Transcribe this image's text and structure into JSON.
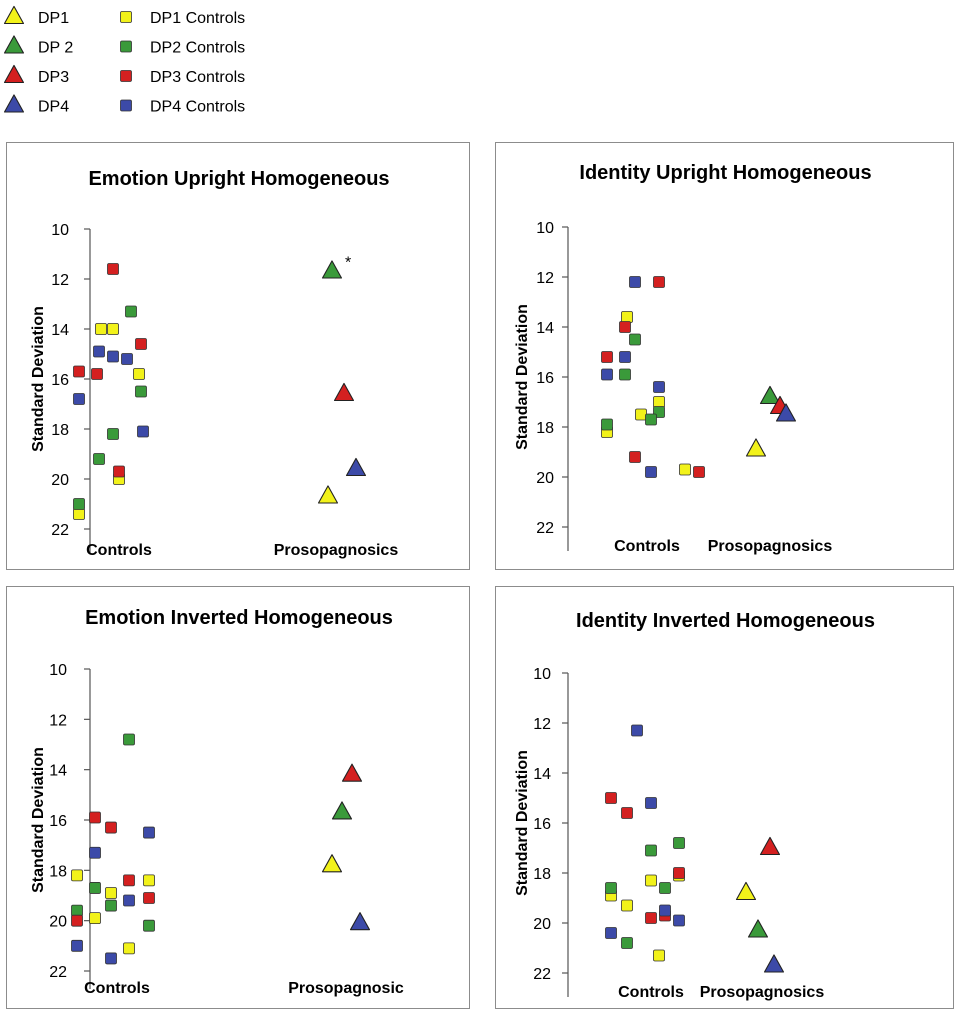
{
  "legend": {
    "items": [
      {
        "label": "DP1",
        "shape": "triangle",
        "color": "#f2f21a"
      },
      {
        "label": "DP 2",
        "shape": "triangle",
        "color": "#3a9a3a"
      },
      {
        "label": "DP3",
        "shape": "triangle",
        "color": "#d42020"
      },
      {
        "label": "DP4",
        "shape": "triangle",
        "color": "#3c4aa8"
      },
      {
        "label": "DP1 Controls",
        "shape": "square",
        "color": "#f2f21a"
      },
      {
        "label": "DP2 Controls",
        "shape": "square",
        "color": "#3a9a3a"
      },
      {
        "label": "DP3 Controls",
        "shape": "square",
        "color": "#d42020"
      },
      {
        "label": "DP4 Controls",
        "shape": "square",
        "color": "#3c4aa8"
      }
    ]
  },
  "chart_data": [
    {
      "type": "scatter",
      "title": "Emotion Upright Homogeneous",
      "ylabel": "Standard Deviation",
      "ylim": [
        10,
        22
      ],
      "y_inverted": true,
      "y_ticks": [
        "10",
        "12",
        "14",
        "16",
        "18",
        "20",
        "22"
      ],
      "categories": [
        "Controls",
        "Prosopagnosics"
      ],
      "annotation": "*",
      "annotation_point": "DP 2",
      "series": [
        {
          "name": "DP1 Controls",
          "marker": "square",
          "color": "#f2f21a",
          "points": [
            [
              -0.45,
              14.0
            ],
            [
              -0.15,
              14.0
            ],
            [
              0.5,
              15.8
            ],
            [
              0.0,
              20.0
            ],
            [
              -1.0,
              21.4
            ]
          ]
        },
        {
          "name": "DP2 Controls",
          "marker": "square",
          "color": "#3a9a3a",
          "points": [
            [
              0.3,
              13.3
            ],
            [
              0.55,
              16.5
            ],
            [
              -0.15,
              18.2
            ],
            [
              -0.5,
              19.2
            ],
            [
              -1.0,
              21.0
            ]
          ]
        },
        {
          "name": "DP3 Controls",
          "marker": "square",
          "color": "#d42020",
          "points": [
            [
              -0.15,
              11.6
            ],
            [
              0.55,
              14.6
            ],
            [
              -1.0,
              15.7
            ],
            [
              -0.55,
              15.8
            ],
            [
              0.0,
              19.7
            ]
          ]
        },
        {
          "name": "DP4 Controls",
          "marker": "square",
          "color": "#3c4aa8",
          "points": [
            [
              -0.5,
              14.9
            ],
            [
              -0.15,
              15.1
            ],
            [
              0.2,
              15.2
            ],
            [
              -1.0,
              16.8
            ],
            [
              0.6,
              18.1
            ]
          ]
        },
        {
          "name": "DP1",
          "marker": "triangle",
          "color": "#f2f21a",
          "points": [
            [
              -0.2,
              20.7
            ]
          ]
        },
        {
          "name": "DP 2",
          "marker": "triangle",
          "color": "#3a9a3a",
          "points": [
            [
              -0.1,
              11.7
            ]
          ]
        },
        {
          "name": "DP3",
          "marker": "triangle",
          "color": "#d42020",
          "points": [
            [
              0.2,
              16.6
            ]
          ]
        },
        {
          "name": "DP4",
          "marker": "triangle",
          "color": "#3c4aa8",
          "points": [
            [
              0.5,
              19.6
            ]
          ]
        }
      ]
    },
    {
      "type": "scatter",
      "title": "Identity Upright Homogeneous",
      "ylabel": "Standard Deviation",
      "ylim": [
        10,
        22
      ],
      "y_inverted": true,
      "y_ticks": [
        "10",
        "12",
        "14",
        "16",
        "18",
        "20",
        "22"
      ],
      "categories": [
        "Controls",
        "Prosopagnosics"
      ],
      "series": [
        {
          "name": "DP1 Controls",
          "marker": "square",
          "color": "#f2f21a",
          "points": [
            [
              -0.5,
              13.6
            ],
            [
              0.3,
              17.0
            ],
            [
              -0.15,
              17.5
            ],
            [
              -1.0,
              18.2
            ],
            [
              0.95,
              19.7
            ]
          ]
        },
        {
          "name": "DP2 Controls",
          "marker": "square",
          "color": "#3a9a3a",
          "points": [
            [
              -0.3,
              14.5
            ],
            [
              -0.55,
              15.9
            ],
            [
              0.3,
              17.4
            ],
            [
              0.1,
              17.7
            ],
            [
              -1.0,
              17.9
            ]
          ]
        },
        {
          "name": "DP3 Controls",
          "marker": "square",
          "color": "#d42020",
          "points": [
            [
              0.3,
              12.2
            ],
            [
              -0.55,
              14.0
            ],
            [
              -1.0,
              15.2
            ],
            [
              -0.3,
              19.2
            ],
            [
              1.3,
              19.8
            ]
          ]
        },
        {
          "name": "DP4 Controls",
          "marker": "square",
          "color": "#3c4aa8",
          "points": [
            [
              -0.3,
              12.2
            ],
            [
              -0.55,
              15.2
            ],
            [
              -1.0,
              15.9
            ],
            [
              0.3,
              16.4
            ],
            [
              0.1,
              19.8
            ]
          ]
        },
        {
          "name": "DP1",
          "marker": "triangle",
          "color": "#f2f21a",
          "points": [
            [
              -0.35,
              18.9
            ]
          ]
        },
        {
          "name": "DP 2",
          "marker": "triangle",
          "color": "#3a9a3a",
          "points": [
            [
              0.0,
              16.8
            ]
          ]
        },
        {
          "name": "DP3",
          "marker": "triangle",
          "color": "#d42020",
          "points": [
            [
              0.25,
              17.2
            ]
          ]
        },
        {
          "name": "DP4",
          "marker": "triangle",
          "color": "#3c4aa8",
          "points": [
            [
              0.4,
              17.5
            ]
          ]
        }
      ]
    },
    {
      "type": "scatter",
      "title": "Emotion Inverted Homogeneous",
      "ylabel": "Standard Deviation",
      "ylim": [
        10,
        22
      ],
      "y_inverted": true,
      "y_ticks": [
        "10",
        "12",
        "14",
        "16",
        "18",
        "20",
        "22"
      ],
      "categories": [
        "Controls",
        "Prosopagnosic"
      ],
      "series": [
        {
          "name": "DP1 Controls",
          "marker": "square",
          "color": "#f2f21a",
          "points": [
            [
              -1.0,
              18.2
            ],
            [
              0.8,
              18.4
            ],
            [
              -0.15,
              18.9
            ],
            [
              -0.55,
              19.9
            ],
            [
              0.3,
              21.1
            ]
          ]
        },
        {
          "name": "DP2 Controls",
          "marker": "square",
          "color": "#3a9a3a",
          "points": [
            [
              0.3,
              12.8
            ],
            [
              -0.55,
              18.7
            ],
            [
              -0.15,
              19.4
            ],
            [
              -1.0,
              19.6
            ],
            [
              0.8,
              20.2
            ]
          ]
        },
        {
          "name": "DP3 Controls",
          "marker": "square",
          "color": "#d42020",
          "points": [
            [
              -0.55,
              15.9
            ],
            [
              -0.15,
              16.3
            ],
            [
              0.3,
              18.4
            ],
            [
              0.8,
              19.1
            ],
            [
              -1.0,
              20.0
            ]
          ]
        },
        {
          "name": "DP4 Controls",
          "marker": "square",
          "color": "#3c4aa8",
          "points": [
            [
              0.8,
              16.5
            ],
            [
              -0.55,
              17.3
            ],
            [
              0.3,
              19.2
            ],
            [
              -1.0,
              21.0
            ],
            [
              -0.15,
              21.5
            ]
          ]
        },
        {
          "name": "DP1",
          "marker": "triangle",
          "color": "#f2f21a",
          "points": [
            [
              -0.35,
              17.8
            ]
          ]
        },
        {
          "name": "DP 2",
          "marker": "triangle",
          "color": "#3a9a3a",
          "points": [
            [
              -0.1,
              15.7
            ]
          ]
        },
        {
          "name": "DP3",
          "marker": "triangle",
          "color": "#d42020",
          "points": [
            [
              0.15,
              14.2
            ]
          ]
        },
        {
          "name": "DP4",
          "marker": "triangle",
          "color": "#3c4aa8",
          "points": [
            [
              0.35,
              20.1
            ]
          ]
        }
      ]
    },
    {
      "type": "scatter",
      "title": "Identity Inverted Homogeneous",
      "ylabel": "Standard Deviation",
      "ylim": [
        10,
        22
      ],
      "y_inverted": true,
      "y_ticks": [
        "10",
        "12",
        "14",
        "16",
        "18",
        "20",
        "22"
      ],
      "categories": [
        "Controls",
        "Prosopagnosics"
      ],
      "series": [
        {
          "name": "DP1 Controls",
          "marker": "square",
          "color": "#f2f21a",
          "points": [
            [
              0.0,
              18.3
            ],
            [
              0.7,
              18.1
            ],
            [
              -1.0,
              18.9
            ],
            [
              -0.6,
              19.3
            ],
            [
              0.2,
              21.3
            ]
          ]
        },
        {
          "name": "DP2 Controls",
          "marker": "square",
          "color": "#3a9a3a",
          "points": [
            [
              0.7,
              16.8
            ],
            [
              0.0,
              17.1
            ],
            [
              0.35,
              18.6
            ],
            [
              -1.0,
              18.6
            ],
            [
              -0.6,
              20.8
            ]
          ]
        },
        {
          "name": "DP3 Controls",
          "marker": "square",
          "color": "#d42020",
          "points": [
            [
              -1.0,
              15.0
            ],
            [
              -0.6,
              15.6
            ],
            [
              0.7,
              18.0
            ],
            [
              0.35,
              19.7
            ],
            [
              0.0,
              19.8
            ]
          ]
        },
        {
          "name": "DP4 Controls",
          "marker": "square",
          "color": "#3c4aa8",
          "points": [
            [
              -0.35,
              12.3
            ],
            [
              0.0,
              15.2
            ],
            [
              0.35,
              19.5
            ],
            [
              0.7,
              19.9
            ],
            [
              -1.0,
              20.4
            ]
          ]
        },
        {
          "name": "DP1",
          "marker": "triangle",
          "color": "#f2f21a",
          "points": [
            [
              -0.4,
              18.8
            ]
          ]
        },
        {
          "name": "DP 2",
          "marker": "triangle",
          "color": "#3a9a3a",
          "points": [
            [
              -0.1,
              20.3
            ]
          ]
        },
        {
          "name": "DP3",
          "marker": "triangle",
          "color": "#d42020",
          "points": [
            [
              0.2,
              17.0
            ]
          ]
        },
        {
          "name": "DP4",
          "marker": "triangle",
          "color": "#3c4aa8",
          "points": [
            [
              0.3,
              21.7
            ]
          ]
        }
      ]
    }
  ]
}
